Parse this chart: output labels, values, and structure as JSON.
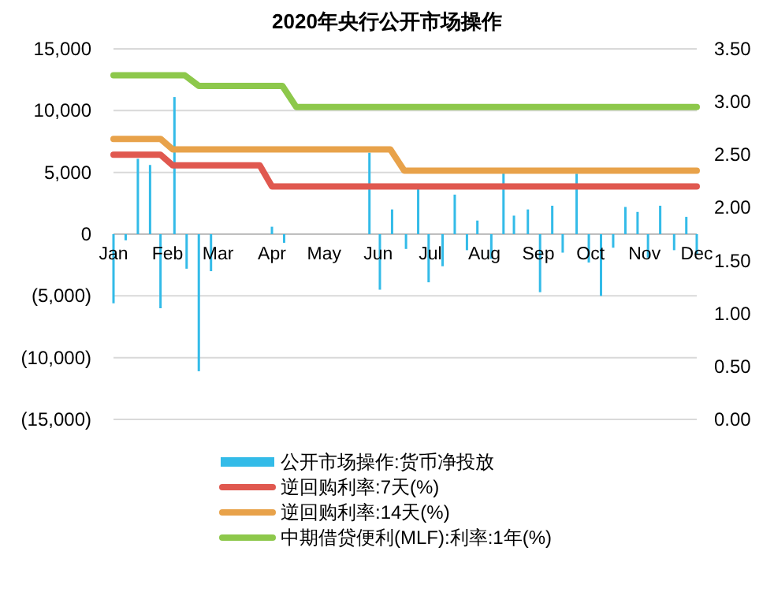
{
  "chart_data": {
    "type": "bar",
    "title": "2020年央行公开市场操作",
    "xlim": [
      "2020-01-01",
      "2020-12-01"
    ],
    "xticks": [
      {
        "value": "2020-01-01",
        "label": "Jan"
      },
      {
        "value": "2020-02-01",
        "label": "Feb"
      },
      {
        "value": "2020-03-01",
        "label": "Mar"
      },
      {
        "value": "2020-04-01",
        "label": "Apr"
      },
      {
        "value": "2020-05-01",
        "label": "May"
      },
      {
        "value": "2020-06-01",
        "label": "Jun"
      },
      {
        "value": "2020-07-01",
        "label": "Jul"
      },
      {
        "value": "2020-08-01",
        "label": "Aug"
      },
      {
        "value": "2020-09-01",
        "label": "Sep"
      },
      {
        "value": "2020-10-01",
        "label": "Oct"
      },
      {
        "value": "2020-11-01",
        "label": "Nov"
      },
      {
        "value": "2020-12-01",
        "label": "Dec"
      }
    ],
    "ylim": [
      -15000,
      15000
    ],
    "yticks": [
      {
        "value": -15000,
        "label": "(15,000)"
      },
      {
        "value": -10000,
        "label": "(10,000)"
      },
      {
        "value": -5000,
        "label": "(5,000)"
      },
      0,
      {
        "value": 5000,
        "label": "5,000"
      },
      {
        "value": 10000,
        "label": "10,000"
      },
      {
        "value": 15000,
        "label": "15,000"
      }
    ],
    "y2lim": [
      0,
      3.5
    ],
    "y2ticks": [
      {
        "value": 0,
        "label": "0.00"
      },
      {
        "value": 0.5,
        "label": "0.50"
      },
      {
        "value": 1,
        "label": "1.00"
      },
      {
        "value": 1.5,
        "label": "1.50"
      },
      {
        "value": 2,
        "label": "2.00"
      },
      {
        "value": 2.5,
        "label": "2.50"
      },
      {
        "value": 3,
        "label": "3.00"
      },
      {
        "value": 3.5,
        "label": "3.50"
      }
    ],
    "grid": "y",
    "legend": "bottom",
    "series": [
      {
        "name": "公开市场操作:货币净投放",
        "color": "#33bbe8",
        "x": [
          "2020-01-01",
          "2020-01-08",
          "2020-01-15",
          "2020-01-22",
          "2020-01-28",
          "2020-02-05",
          "2020-02-12",
          "2020-02-19",
          "2020-02-26",
          "2020-04-01",
          "2020-04-08",
          "2020-05-27",
          "2020-06-02",
          "2020-06-09",
          "2020-06-17",
          "2020-06-24",
          "2020-06-30",
          "2020-07-08",
          "2020-07-15",
          "2020-07-22",
          "2020-07-28",
          "2020-08-05",
          "2020-08-12",
          "2020-08-18",
          "2020-08-26",
          "2020-09-02",
          "2020-09-09",
          "2020-09-15",
          "2020-09-23",
          "2020-09-30",
          "2020-10-07",
          "2020-10-14",
          "2020-10-21",
          "2020-10-28",
          "2020-11-03",
          "2020-11-10",
          "2020-11-18",
          "2020-11-25",
          "2020-12-01"
        ],
        "values": [
          -5600,
          -500,
          6100,
          5600,
          -6000,
          11100,
          -2800,
          -11100,
          -3000,
          600,
          -700,
          6600,
          -4500,
          2000,
          -1200,
          3700,
          -3900,
          -2600,
          3200,
          -1300,
          1100,
          -2000,
          5000,
          1500,
          2000,
          -4700,
          2300,
          -1500,
          4900,
          -2300,
          -5000,
          -1100,
          2200,
          1800,
          -1900,
          2300,
          -1300,
          1400,
          -1600
        ]
      },
      {
        "name": "逆回购利率:7天(%)",
        "type": "line",
        "axis": "y2",
        "color": "#e0584f",
        "x": [
          "2020-01-01",
          "2020-01-28",
          "2020-02-04",
          "2020-03-25",
          "2020-04-01",
          "2020-12-01"
        ],
        "values": [
          2.5,
          2.5,
          2.4,
          2.4,
          2.2,
          2.2
        ]
      },
      {
        "name": "逆回购利率:14天(%)",
        "type": "line",
        "axis": "y2",
        "color": "#e8a24a",
        "x": [
          "2020-01-01",
          "2020-01-28",
          "2020-02-04",
          "2020-06-08",
          "2020-06-16",
          "2020-12-01"
        ],
        "values": [
          2.65,
          2.65,
          2.55,
          2.55,
          2.35,
          2.35
        ]
      },
      {
        "name": "中期借贷便利(MLF):利率:1年(%)",
        "type": "line",
        "axis": "y2",
        "color": "#8dc84b",
        "x": [
          "2020-01-01",
          "2020-02-11",
          "2020-02-19",
          "2020-04-07",
          "2020-04-15",
          "2020-12-01"
        ],
        "values": [
          3.25,
          3.25,
          3.15,
          3.15,
          2.95,
          2.95
        ]
      }
    ]
  }
}
